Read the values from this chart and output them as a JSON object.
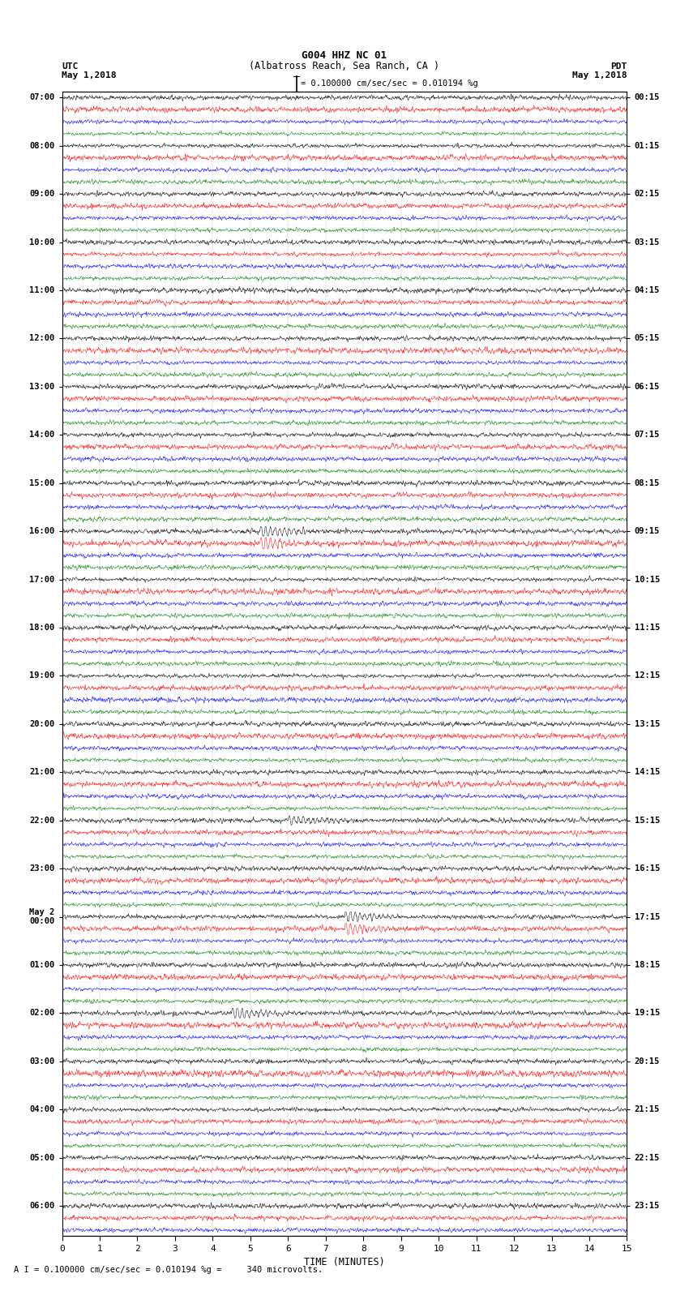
{
  "title_line1": "G004 HHZ NC 01",
  "title_line2": "(Albatross Reach, Sea Ranch, CA )",
  "label_left_top1": "UTC",
  "label_left_top2": "May 1,2018",
  "label_right_top1": "PDT",
  "label_right_top2": "May 1,2018",
  "scale_label": "= 0.100000 cm/sec/sec = 0.010194 %g",
  "bottom_label": "A I = 0.100000 cm/sec/sec = 0.010194 %g =     340 microvolts.",
  "xlabel": "TIME (MINUTES)",
  "xticks": [
    0,
    1,
    2,
    3,
    4,
    5,
    6,
    7,
    8,
    9,
    10,
    11,
    12,
    13,
    14,
    15
  ],
  "colors": [
    "black",
    "red",
    "blue",
    "green"
  ],
  "background_color": "white",
  "utc_labels": [
    "07:00",
    "",
    "",
    "",
    "08:00",
    "",
    "",
    "",
    "09:00",
    "",
    "",
    "",
    "10:00",
    "",
    "",
    "",
    "11:00",
    "",
    "",
    "",
    "12:00",
    "",
    "",
    "",
    "13:00",
    "",
    "",
    "",
    "14:00",
    "",
    "",
    "",
    "15:00",
    "",
    "",
    "",
    "16:00",
    "",
    "",
    "",
    "17:00",
    "",
    "",
    "",
    "18:00",
    "",
    "",
    "",
    "19:00",
    "",
    "",
    "",
    "20:00",
    "",
    "",
    "",
    "21:00",
    "",
    "",
    "",
    "22:00",
    "",
    "",
    "",
    "23:00",
    "",
    "",
    "",
    "May 2\n00:00",
    "",
    "",
    "",
    "01:00",
    "",
    "",
    "",
    "02:00",
    "",
    "",
    "",
    "03:00",
    "",
    "",
    "",
    "04:00",
    "",
    "",
    "",
    "05:00",
    "",
    "",
    "",
    "06:00",
    "",
    ""
  ],
  "pdt_labels": [
    "00:15",
    "",
    "",
    "",
    "01:15",
    "",
    "",
    "",
    "02:15",
    "",
    "",
    "",
    "03:15",
    "",
    "",
    "",
    "04:15",
    "",
    "",
    "",
    "05:15",
    "",
    "",
    "",
    "06:15",
    "",
    "",
    "",
    "07:15",
    "",
    "",
    "",
    "08:15",
    "",
    "",
    "",
    "09:15",
    "",
    "",
    "",
    "10:15",
    "",
    "",
    "",
    "11:15",
    "",
    "",
    "",
    "12:15",
    "",
    "",
    "",
    "13:15",
    "",
    "",
    "",
    "14:15",
    "",
    "",
    "",
    "15:15",
    "",
    "",
    "",
    "16:15",
    "",
    "",
    "",
    "17:15",
    "",
    "",
    "",
    "18:15",
    "",
    "",
    "",
    "19:15",
    "",
    "",
    "",
    "20:15",
    "",
    "",
    "",
    "21:15",
    "",
    "",
    "",
    "22:15",
    "",
    "",
    "",
    "23:15",
    "",
    ""
  ],
  "fig_width": 8.5,
  "fig_height": 16.13,
  "dpi": 100
}
